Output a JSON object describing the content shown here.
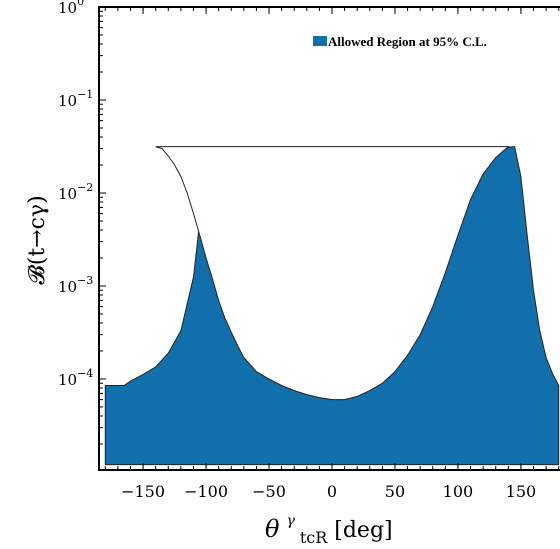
{
  "chart_data": {
    "type": "area",
    "title": "",
    "xlabel": "θ^γ_tcR[deg]",
    "xlabel_main": "θ",
    "xlabel_sup": "γ",
    "xlabel_sub": "tcR",
    "xlabel_unit": "[deg]",
    "ylabel": "𝓑(t→cγ)",
    "xlim": [
      -185,
      185
    ],
    "ylim": [
      1.05e-05,
      1
    ],
    "y_scale": "log",
    "grid": false,
    "x_ticks": [
      -150,
      -100,
      -50,
      0,
      50,
      100,
      150
    ],
    "x_tick_labels": [
      "−150",
      "−100",
      "−50",
      "0",
      "50",
      "100",
      "150"
    ],
    "y_ticks": [
      {
        "value": 1,
        "base": "10",
        "exp": "0"
      },
      {
        "value": 0.1,
        "base": "10",
        "exp": "−1"
      },
      {
        "value": 0.01,
        "base": "10",
        "exp": "−2"
      },
      {
        "value": 0.001,
        "base": "10",
        "exp": "−3"
      },
      {
        "value": 0.0001,
        "base": "10",
        "exp": "−4"
      }
    ],
    "legend": {
      "placement": "top-right",
      "label": "Allowed Region at 95% C.L.",
      "color": "#1170ac"
    },
    "series": [
      {
        "name": "Allowed Region at 95% C.L.",
        "color": "#1170ac",
        "lower": 1.2e-05,
        "upper": [
          {
            "x": -180,
            "y": 8.5e-05
          },
          {
            "x": -165,
            "y": 8.5e-05
          },
          {
            "x": -160,
            "y": 9.5e-05
          },
          {
            "x": -150,
            "y": 0.000112
          },
          {
            "x": -140,
            "y": 0.000135
          },
          {
            "x": -130,
            "y": 0.00019
          },
          {
            "x": -120,
            "y": 0.00033
          },
          {
            "x": -110,
            "y": 0.00125
          },
          {
            "x": -105,
            "y": 0.005
          },
          {
            "x": -100,
            "y": 0.0102
          },
          {
            "x": -95,
            "y": 0.0082
          },
          {
            "x": -90,
            "y": 0.0035
          },
          {
            "x": -80,
            "y": 0.0011
          },
          {
            "x": -70,
            "y": 0.0005
          },
          {
            "x": -60,
            "y": 0.00027
          },
          {
            "x": -50,
            "y": 0.00018
          },
          {
            "x": -40,
            "y": 0.00013
          },
          {
            "x": -30,
            "y": 0.0001
          },
          {
            "x": -20,
            "y": 8.2e-05
          },
          {
            "x": -10,
            "y": 6.7e-05
          },
          {
            "x": 0,
            "y": 6.1e-05
          },
          {
            "x": 10,
            "y": 6e-05
          },
          {
            "x": 20,
            "y": 6.8e-05
          },
          {
            "x": 30,
            "y": 8.2e-05
          },
          {
            "x": 40,
            "y": 0.000105
          },
          {
            "x": 50,
            "y": 0.00015
          },
          {
            "x": 60,
            "y": 0.00025
          },
          {
            "x": 70,
            "y": 0.00045
          },
          {
            "x": 80,
            "y": 0.001
          },
          {
            "x": 90,
            "y": 0.0027
          },
          {
            "x": 100,
            "y": 0.0075
          },
          {
            "x": 110,
            "y": 0.015
          },
          {
            "x": 120,
            "y": 0.022
          },
          {
            "x": 130,
            "y": 0.027
          },
          {
            "x": 140,
            "y": 0.031
          },
          {
            "x": 145,
            "y": 0.0315
          },
          {
            "x": 150,
            "y": 0.015
          },
          {
            "x": 155,
            "y": 0.0035
          },
          {
            "x": 160,
            "y": 0.0009
          },
          {
            "x": 165,
            "y": 0.00033
          },
          {
            "x": 170,
            "y": 0.00017
          },
          {
            "x": 175,
            "y": 0.000115
          },
          {
            "x": 180,
            "y": 8.5e-05
          }
        ],
        "left_lobe": [
          {
            "x": -140,
            "y": 0.0315
          },
          {
            "x": -135,
            "y": 0.03
          },
          {
            "x": -130,
            "y": 0.025
          },
          {
            "x": -125,
            "y": 0.02
          },
          {
            "x": -120,
            "y": 0.015
          },
          {
            "x": -115,
            "y": 0.01
          },
          {
            "x": -110,
            "y": 0.006
          },
          {
            "x": -105,
            "y": 0.0035
          },
          {
            "x": -100,
            "y": 0.002
          },
          {
            "x": -95,
            "y": 0.0012
          },
          {
            "x": -90,
            "y": 0.0007
          },
          {
            "x": -85,
            "y": 0.00045
          },
          {
            "x": -80,
            "y": 0.00032
          },
          {
            "x": -75,
            "y": 0.00023
          },
          {
            "x": -70,
            "y": 0.00017
          },
          {
            "x": -60,
            "y": 0.00012
          },
          {
            "x": -50,
            "y": 0.0001
          },
          {
            "x": -40,
            "y": 8.5e-05
          },
          {
            "x": -30,
            "y": 7.5e-05
          },
          {
            "x": -20,
            "y": 6.8e-05
          },
          {
            "x": -10,
            "y": 6.3e-05
          },
          {
            "x": 0,
            "y": 6e-05
          },
          {
            "x": 10,
            "y": 6e-05
          },
          {
            "x": 20,
            "y": 6.5e-05
          },
          {
            "x": 30,
            "y": 7.5e-05
          },
          {
            "x": 40,
            "y": 9e-05
          },
          {
            "x": 50,
            "y": 0.00012
          },
          {
            "x": 60,
            "y": 0.00018
          },
          {
            "x": 70,
            "y": 0.0003
          },
          {
            "x": 80,
            "y": 0.0006
          },
          {
            "x": 90,
            "y": 0.0014
          },
          {
            "x": 100,
            "y": 0.0035
          },
          {
            "x": 110,
            "y": 0.0085
          },
          {
            "x": 120,
            "y": 0.016
          },
          {
            "x": 130,
            "y": 0.024
          },
          {
            "x": 140,
            "y": 0.0315
          }
        ],
        "flat_shoulders": {
          "left_x": [
            -180,
            -150
          ],
          "right_x": [
            150,
            180
          ],
          "y": 8.5e-05
        }
      }
    ]
  }
}
